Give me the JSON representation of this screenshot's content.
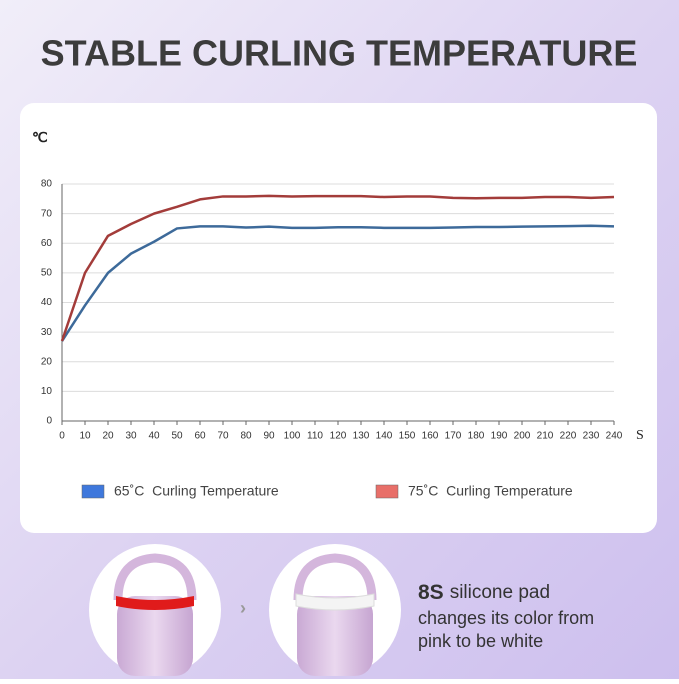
{
  "chart_data": {
    "type": "line",
    "title": "STABLE CURLING TEMPERATURE",
    "y_label": "℃",
    "x_label": "S",
    "x": [
      0,
      10,
      20,
      30,
      40,
      50,
      60,
      70,
      80,
      90,
      100,
      110,
      120,
      130,
      140,
      150,
      160,
      170,
      180,
      190,
      200,
      210,
      220,
      230,
      240
    ],
    "series": [
      {
        "name": "65˚C  Curling Temperature",
        "color": "#3d6a9a",
        "legend_color": "#3f78dc",
        "values": [
          27,
          39,
          50,
          56.5,
          60.5,
          65,
          65.7,
          65.7,
          65.3,
          65.6,
          65.2,
          65.2,
          65.4,
          65.4,
          65.2,
          65.2,
          65.2,
          65.3,
          65.5,
          65.5,
          65.6,
          65.7,
          65.8,
          65.9,
          65.7
        ]
      },
      {
        "name": "75˚C  Curling Temperature",
        "color": "#a33c3a",
        "legend_color": "#e86f69",
        "values": [
          27,
          50,
          62.5,
          66.5,
          70,
          72.3,
          74.8,
          75.8,
          75.8,
          76,
          75.8,
          75.9,
          75.9,
          75.9,
          75.6,
          75.8,
          75.8,
          75.3,
          75.2,
          75.3,
          75.3,
          75.6,
          75.6,
          75.3,
          75.6
        ]
      }
    ],
    "xlim": [
      0,
      240
    ],
    "ylim": [
      0,
      80
    ],
    "xticks": [
      0,
      10,
      20,
      30,
      40,
      50,
      60,
      70,
      80,
      90,
      100,
      110,
      120,
      130,
      140,
      150,
      160,
      170,
      180,
      190,
      200,
      210,
      220,
      230,
      240
    ],
    "yticks": [
      0,
      10,
      20,
      30,
      40,
      50,
      60,
      70,
      80
    ],
    "grid": true
  },
  "caption": {
    "highlight": "8S",
    "lines": [
      "silicone pad",
      "changes its color from",
      "pink to be white"
    ]
  }
}
